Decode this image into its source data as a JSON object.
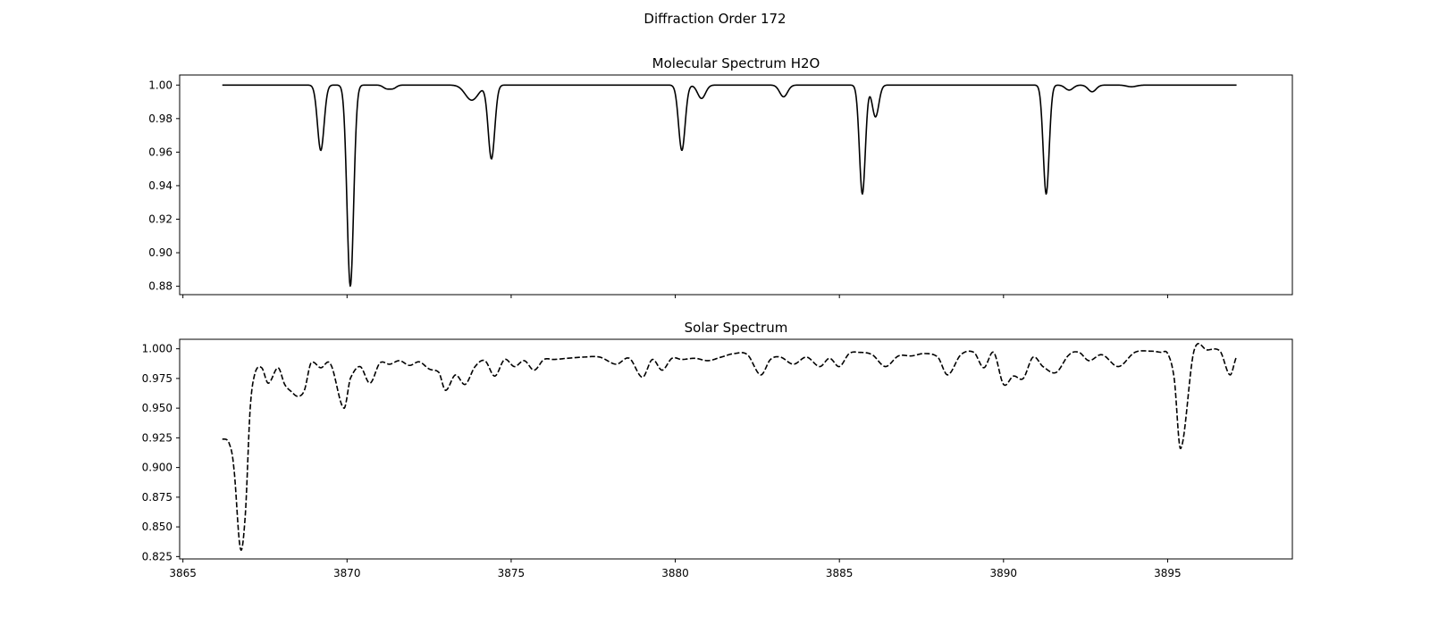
{
  "figure": {
    "title": "Diffraction Order 172"
  },
  "chart_data": [
    {
      "type": "line",
      "title": "Molecular Spectrum H2O",
      "xlabel": "",
      "ylabel": "",
      "xlim": [
        3864.9,
        3898.8
      ],
      "ylim": [
        0.875,
        1.006
      ],
      "xticks": [
        3865,
        3870,
        3875,
        3880,
        3885,
        3890,
        3895
      ],
      "yticks": [
        0.88,
        0.9,
        0.92,
        0.94,
        0.96,
        0.98,
        1.0
      ],
      "ytick_labels": [
        "0.88",
        "0.90",
        "0.92",
        "0.94",
        "0.96",
        "0.98",
        "1.00"
      ],
      "show_xtick_labels": false,
      "grid": false,
      "series": [
        {
          "style": "solid",
          "color": "#000000",
          "x_range": [
            3866.2,
            3897.1
          ],
          "baseline": 1.0,
          "features": [
            {
              "center": 3869.2,
              "depth": 0.039,
              "width": 0.1
            },
            {
              "center": 3870.1,
              "depth": 0.12,
              "width": 0.1
            },
            {
              "center": 3871.2,
              "depth": 0.002,
              "width": 0.1
            },
            {
              "center": 3871.4,
              "depth": 0.002,
              "width": 0.1
            },
            {
              "center": 3873.8,
              "depth": 0.009,
              "width": 0.2
            },
            {
              "center": 3874.4,
              "depth": 0.044,
              "width": 0.1
            },
            {
              "center": 3880.2,
              "depth": 0.039,
              "width": 0.1
            },
            {
              "center": 3880.8,
              "depth": 0.008,
              "width": 0.12
            },
            {
              "center": 3883.3,
              "depth": 0.007,
              "width": 0.12
            },
            {
              "center": 3885.7,
              "depth": 0.065,
              "width": 0.09
            },
            {
              "center": 3886.1,
              "depth": 0.019,
              "width": 0.1
            },
            {
              "center": 3891.3,
              "depth": 0.065,
              "width": 0.09
            },
            {
              "center": 3892.0,
              "depth": 0.003,
              "width": 0.12
            },
            {
              "center": 3892.7,
              "depth": 0.004,
              "width": 0.12
            },
            {
              "center": 3893.9,
              "depth": 0.001,
              "width": 0.15
            }
          ]
        }
      ]
    },
    {
      "type": "line",
      "title": "Solar Spectrum",
      "xlabel": "",
      "ylabel": "",
      "xlim": [
        3864.9,
        3898.8
      ],
      "ylim": [
        0.823,
        1.008
      ],
      "xticks": [
        3865,
        3870,
        3875,
        3880,
        3885,
        3890,
        3895
      ],
      "yticks": [
        0.825,
        0.85,
        0.875,
        0.9,
        0.925,
        0.95,
        0.975,
        1.0
      ],
      "ytick_labels": [
        "0.825",
        "0.850",
        "0.875",
        "0.900",
        "0.925",
        "0.950",
        "0.975",
        "1.000"
      ],
      "xtick_labels": [
        "3865",
        "3870",
        "3875",
        "3880",
        "3885",
        "3890",
        "3895"
      ],
      "show_xtick_labels": true,
      "grid": false,
      "series": [
        {
          "style": "dashed",
          "color": "#000000",
          "x": [
            3866.2,
            3866.4,
            3866.55,
            3866.75,
            3866.9,
            3867.05,
            3867.2,
            3867.4,
            3867.6,
            3867.9,
            3868.1,
            3868.3,
            3868.5,
            3868.7,
            3868.9,
            3869.2,
            3869.5,
            3869.9,
            3870.1,
            3870.4,
            3870.7,
            3871.0,
            3871.3,
            3871.6,
            3871.9,
            3872.2,
            3872.5,
            3872.8,
            3873.0,
            3873.3,
            3873.6,
            3873.9,
            3874.2,
            3874.5,
            3874.8,
            3875.1,
            3875.4,
            3875.7,
            3876.0,
            3876.3,
            3876.7,
            3877.2,
            3877.7,
            3878.2,
            3878.6,
            3879.0,
            3879.3,
            3879.6,
            3879.9,
            3880.2,
            3880.6,
            3881.0,
            3881.4,
            3881.8,
            3882.2,
            3882.6,
            3882.9,
            3883.2,
            3883.6,
            3884.0,
            3884.4,
            3884.7,
            3885.0,
            3885.3,
            3885.6,
            3886.0,
            3886.4,
            3886.8,
            3887.2,
            3887.6,
            3888.0,
            3888.3,
            3888.7,
            3889.1,
            3889.4,
            3889.7,
            3890.0,
            3890.3,
            3890.6,
            3890.9,
            3891.2,
            3891.6,
            3892.0,
            3892.3,
            3892.6,
            3893.0,
            3893.5,
            3894.0,
            3894.5,
            3894.8,
            3895.0,
            3895.2,
            3895.4,
            3895.8,
            3896.2,
            3896.6,
            3896.9,
            3897.1
          ],
          "y": [
            0.924,
            0.921,
            0.9,
            0.832,
            0.86,
            0.95,
            0.98,
            0.984,
            0.971,
            0.984,
            0.97,
            0.964,
            0.96,
            0.965,
            0.988,
            0.984,
            0.987,
            0.95,
            0.975,
            0.985,
            0.971,
            0.988,
            0.987,
            0.99,
            0.986,
            0.989,
            0.983,
            0.98,
            0.965,
            0.978,
            0.97,
            0.985,
            0.99,
            0.977,
            0.991,
            0.985,
            0.99,
            0.982,
            0.991,
            0.991,
            0.992,
            0.993,
            0.993,
            0.987,
            0.992,
            0.976,
            0.991,
            0.982,
            0.992,
            0.991,
            0.992,
            0.99,
            0.993,
            0.996,
            0.995,
            0.978,
            0.991,
            0.993,
            0.987,
            0.993,
            0.985,
            0.992,
            0.985,
            0.996,
            0.997,
            0.995,
            0.985,
            0.994,
            0.994,
            0.996,
            0.993,
            0.978,
            0.995,
            0.997,
            0.984,
            0.997,
            0.97,
            0.977,
            0.975,
            0.993,
            0.985,
            0.98,
            0.995,
            0.997,
            0.99,
            0.995,
            0.985,
            0.997,
            0.998,
            0.997,
            0.996,
            0.975,
            0.916,
            0.998,
            0.999,
            0.998,
            0.978,
            0.993
          ]
        }
      ]
    }
  ]
}
